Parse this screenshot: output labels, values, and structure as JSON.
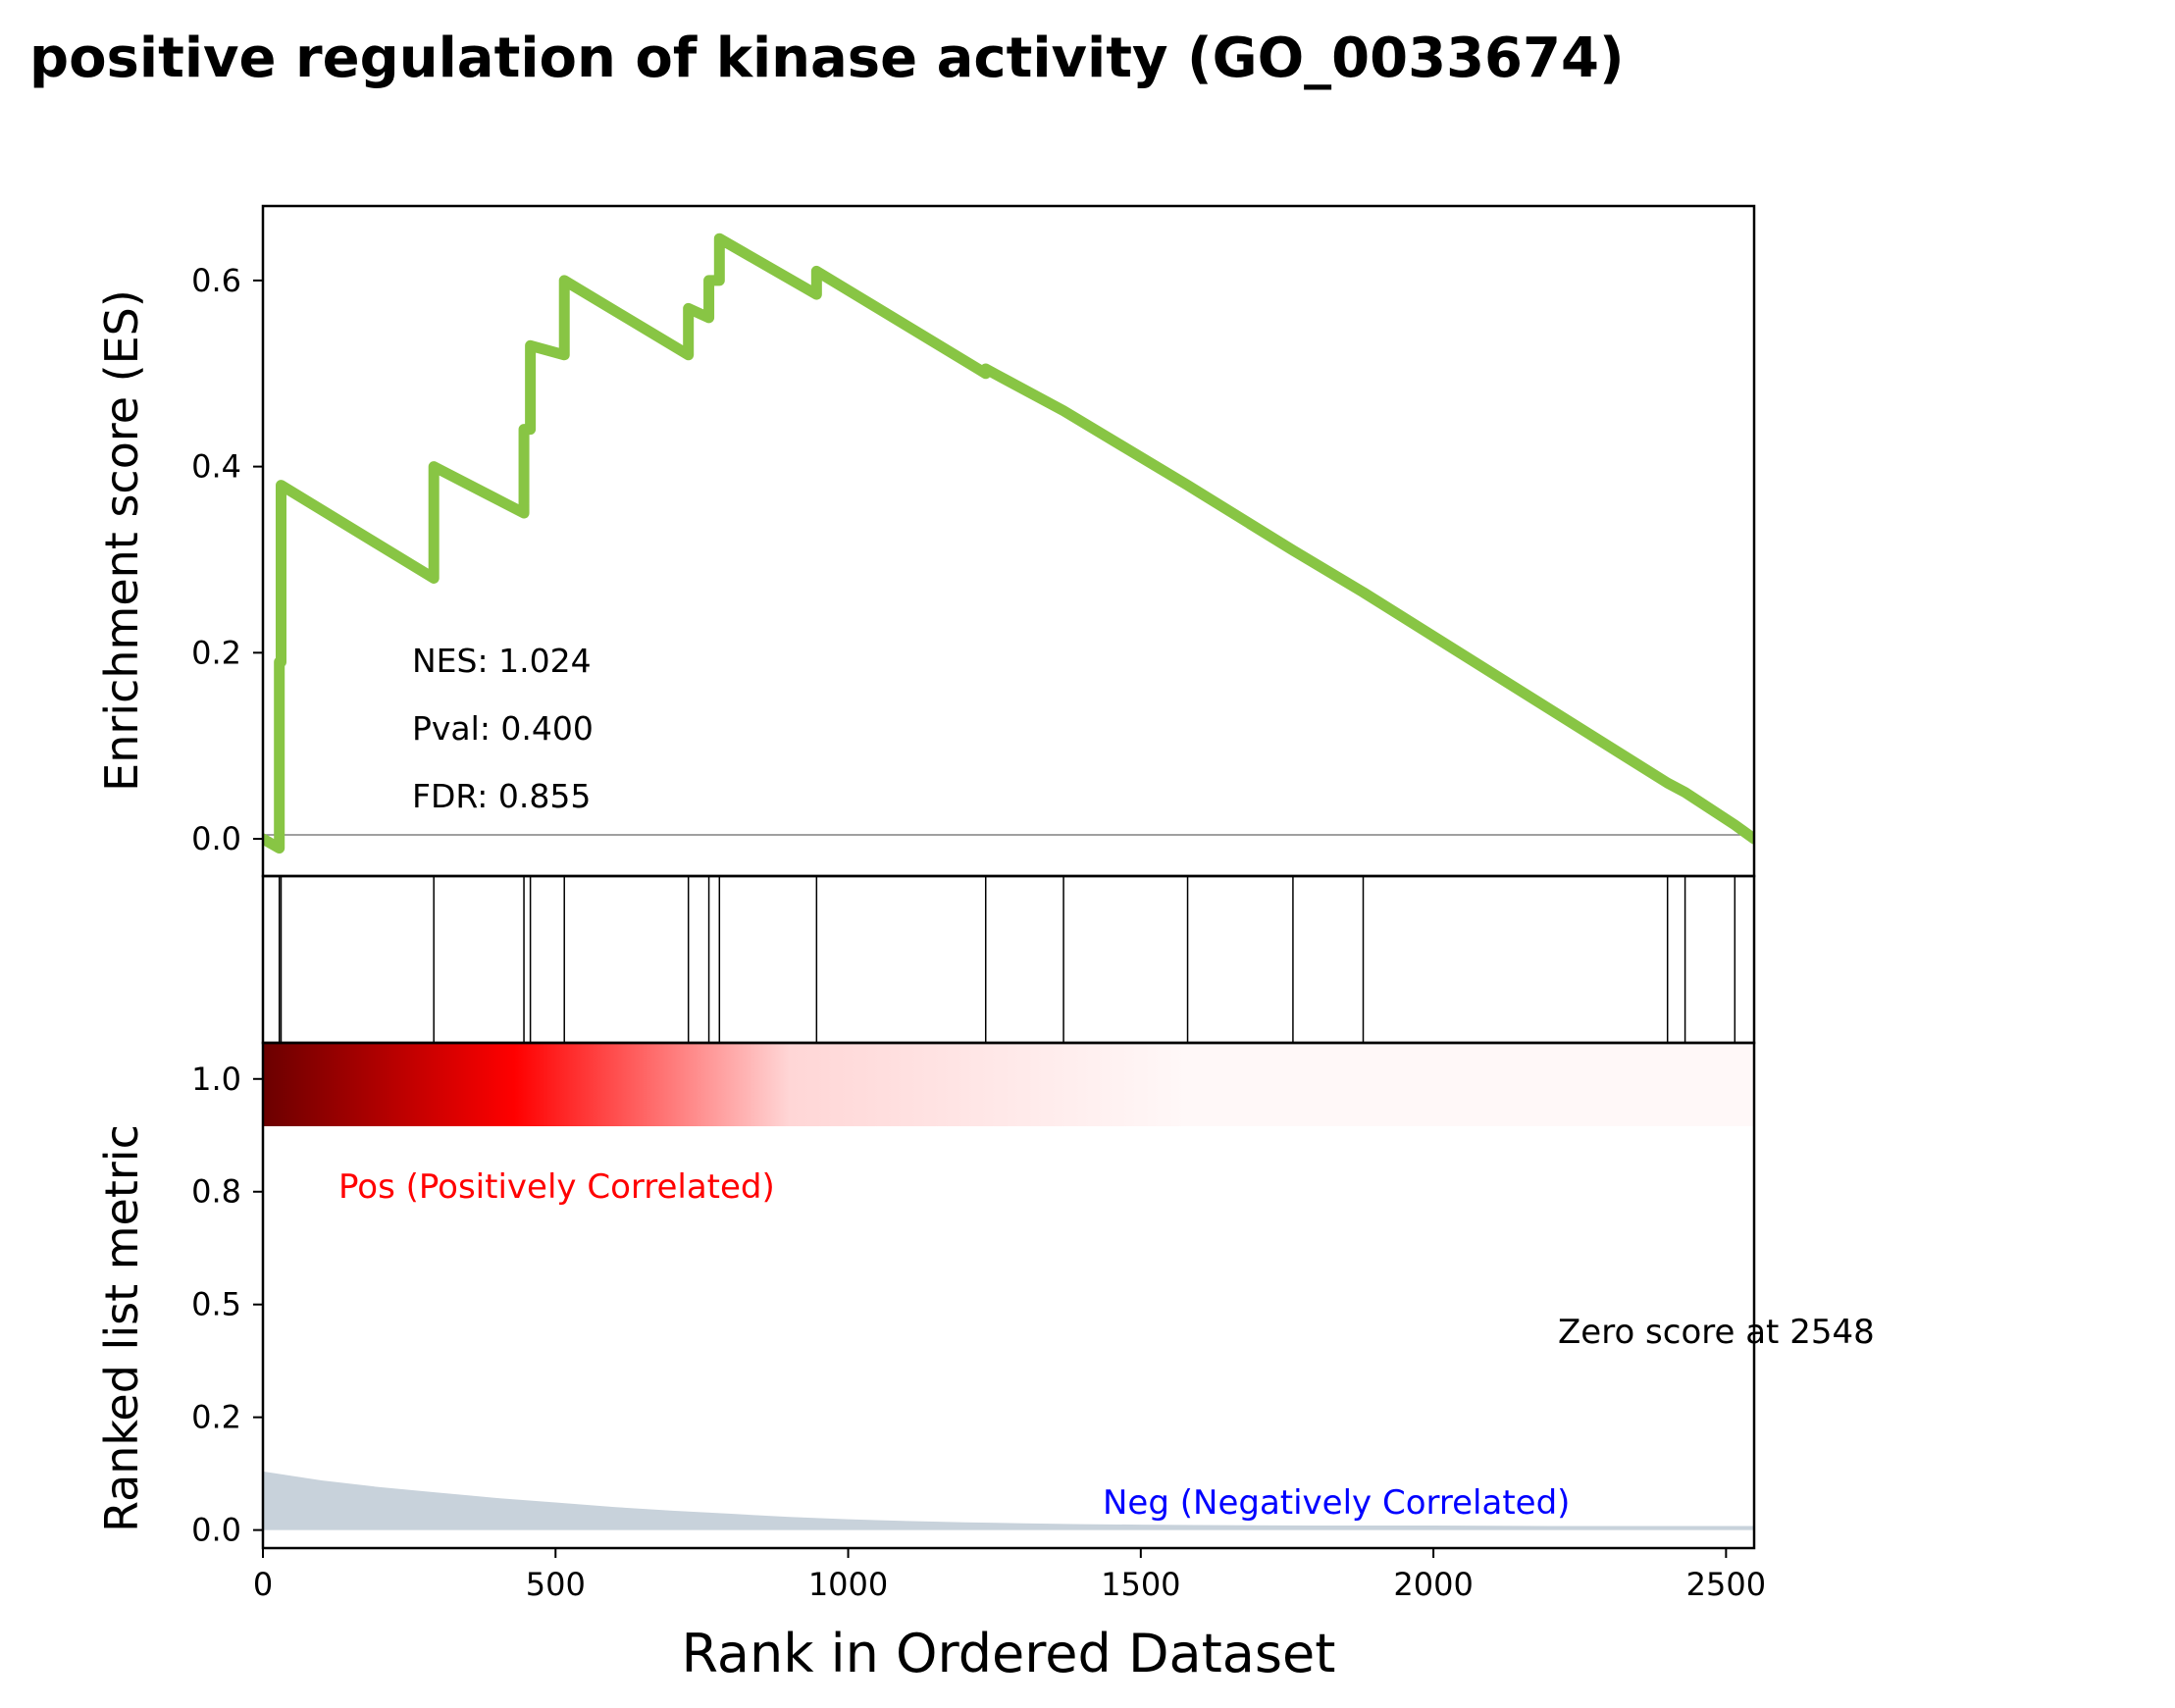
{
  "title": "positive regulation of kinase activity (GO_0033674)",
  "chart_data": {
    "type": "line",
    "title": "positive regulation of kinase activity (GO_0033674)",
    "xlabel": "Rank in Ordered Dataset",
    "xlim": [
      0,
      2548
    ],
    "x_ticks": [
      0,
      500,
      1000,
      1500,
      2000,
      2500
    ],
    "es_panel": {
      "ylabel": "Enrichment score (ES)",
      "ylim": [
        -0.04,
        0.68
      ],
      "y_ticks": [
        "0.0",
        "0.2",
        "0.4",
        "0.6"
      ],
      "y_tick_values": [
        0.0,
        0.2,
        0.4,
        0.6
      ],
      "line_color": "#88c544",
      "zero_line": 0,
      "es_curve": {
        "x": [
          0,
          28,
          28,
          31,
          31,
          292,
          292,
          446,
          446,
          457,
          457,
          515,
          515,
          727,
          727,
          762,
          762,
          780,
          780,
          946,
          946,
          1235,
          1235,
          1368,
          1368,
          1580,
          1580,
          1760,
          1760,
          1880,
          1880,
          2400,
          2400,
          2430,
          2430,
          2515,
          2515,
          2548
        ],
        "y": [
          0.0,
          -0.01,
          0.19,
          0.19,
          0.38,
          0.28,
          0.4,
          0.35,
          0.44,
          0.44,
          0.53,
          0.52,
          0.6,
          0.52,
          0.57,
          0.56,
          0.6,
          0.6,
          0.645,
          0.585,
          0.61,
          0.5,
          0.505,
          0.46,
          0.46,
          0.38,
          0.38,
          0.31,
          0.31,
          0.265,
          0.265,
          0.06,
          0.06,
          0.05,
          0.05,
          0.015,
          0.015,
          0.0
        ]
      },
      "annotations": [
        {
          "label": "NES",
          "text": "NES: 1.024"
        },
        {
          "label": "Pval",
          "text": "Pval: 0.400"
        },
        {
          "label": "FDR",
          "text": "FDR: 0.855"
        }
      ]
    },
    "hits": [
      28,
      31,
      292,
      446,
      457,
      515,
      727,
      762,
      780,
      946,
      1235,
      1368,
      1580,
      1760,
      1880,
      2400,
      2430,
      2515
    ],
    "color_bar": {
      "stops": [
        {
          "rank": 0,
          "color": "#6b0000"
        },
        {
          "rank": 430,
          "color": "#ff0000"
        },
        {
          "rank": 900,
          "color": "#ffd6d6"
        },
        {
          "rank": 1580,
          "color": "#fff8f8"
        },
        {
          "rank": 2548,
          "color": "#fff8f8"
        }
      ]
    },
    "metric_panel": {
      "ylabel": "Ranked list metric",
      "y_ticks": [
        "0.0",
        "0.2",
        "0.5",
        "0.8",
        "1.0"
      ],
      "y_tick_values": [
        0.0,
        0.25,
        0.5,
        0.75,
        1.0
      ],
      "ylim": [
        -0.04,
        1.08
      ],
      "fill_color": "#c8d2db",
      "metric": {
        "x": [
          0,
          100,
          200,
          300,
          400,
          500,
          600,
          700,
          800,
          900,
          1000,
          1100,
          1200,
          1300,
          1400,
          1500,
          1600,
          1800,
          2000,
          2200,
          2400,
          2548
        ],
        "y": [
          0.13,
          0.11,
          0.095,
          0.083,
          0.071,
          0.061,
          0.051,
          0.043,
          0.036,
          0.029,
          0.024,
          0.02,
          0.017,
          0.015,
          0.013,
          0.012,
          0.011,
          0.01,
          0.01,
          0.009,
          0.009,
          0.009
        ]
      },
      "pos_label": "Pos (Positively Correlated)",
      "pos_color": "#ff0000",
      "neg_label": "Neg (Negatively Correlated)",
      "neg_color": "#0000ff",
      "zero_label": "Zero score at 2548"
    }
  }
}
